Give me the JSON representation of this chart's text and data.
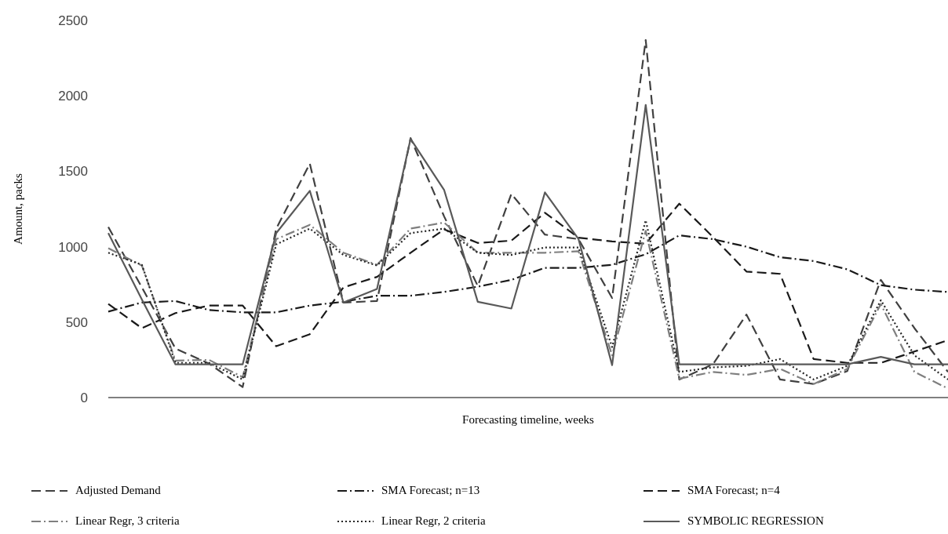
{
  "chart_data": {
    "type": "line",
    "xlabel": "Forecasting timeline, weeks",
    "ylabel": "Amount, packs",
    "categories": [
      null,
      null,
      null,
      null,
      null,
      null,
      null,
      null,
      null,
      null,
      null,
      null,
      null,
      null,
      null,
      null,
      null,
      null,
      null,
      null,
      null,
      null,
      null,
      null,
      null,
      null
    ],
    "ylim": [
      0,
      2500
    ],
    "yticks": [
      0,
      500,
      1000,
      1500,
      2000,
      2500
    ],
    "grid": false,
    "legend": "bottom",
    "marker": "none",
    "tick_labels": "y",
    "series": [
      {
        "name": "Adjusted Demand",
        "color": "#404040",
        "line_style": "dashed",
        "values": [
          1130,
          730,
          325,
          225,
          70,
          1120,
          1550,
          630,
          640,
          1720,
          1200,
          740,
          1350,
          1080,
          1050,
          660,
          2370,
          120,
          220,
          550,
          120,
          90,
          175,
          780,
          460,
          170
        ]
      },
      {
        "name": "SMA Forecast; n=13",
        "color": "#1a1a1a",
        "line_style": "dashdot",
        "values": [
          570,
          630,
          640,
          580,
          565,
          565,
          610,
          635,
          675,
          675,
          700,
          735,
          780,
          860,
          860,
          880,
          950,
          1075,
          1050,
          1000,
          930,
          905,
          850,
          745,
          715,
          700
        ]
      },
      {
        "name": "SMA Forecast; n=4",
        "color": "#1a1a1a",
        "line_style": "dashed",
        "values": [
          620,
          460,
          560,
          610,
          610,
          340,
          420,
          730,
          800,
          960,
          1115,
          1025,
          1040,
          1225,
          1060,
          1035,
          1020,
          1285,
          1065,
          835,
          820,
          255,
          230,
          230,
          305,
          380
        ]
      },
      {
        "name": "Linear Regr, 3 criteria",
        "color": "#7f7f7f",
        "line_style": "dashdot",
        "values": [
          990,
          875,
          245,
          250,
          135,
          1050,
          1145,
          960,
          880,
          1120,
          1160,
          960,
          960,
          960,
          970,
          280,
          1105,
          125,
          170,
          150,
          190,
          90,
          190,
          620,
          170,
          60
        ]
      },
      {
        "name": "Linear Regr, 2 criteria",
        "color": "#262626",
        "line_style": "dotted",
        "values": [
          960,
          880,
          230,
          230,
          120,
          1015,
          1120,
          945,
          875,
          1090,
          1120,
          960,
          945,
          995,
          995,
          335,
          1175,
          170,
          200,
          210,
          255,
          120,
          210,
          645,
          280,
          120
        ]
      },
      {
        "name": "SYMBOLIC REGRESSION",
        "color": "#595959",
        "line_style": "solid",
        "values": [
          1090,
          650,
          220,
          220,
          220,
          1090,
          1370,
          630,
          720,
          1715,
          1375,
          635,
          590,
          1360,
          1050,
          215,
          1940,
          220,
          220,
          220,
          220,
          220,
          220,
          270,
          220,
          220
        ]
      }
    ]
  }
}
